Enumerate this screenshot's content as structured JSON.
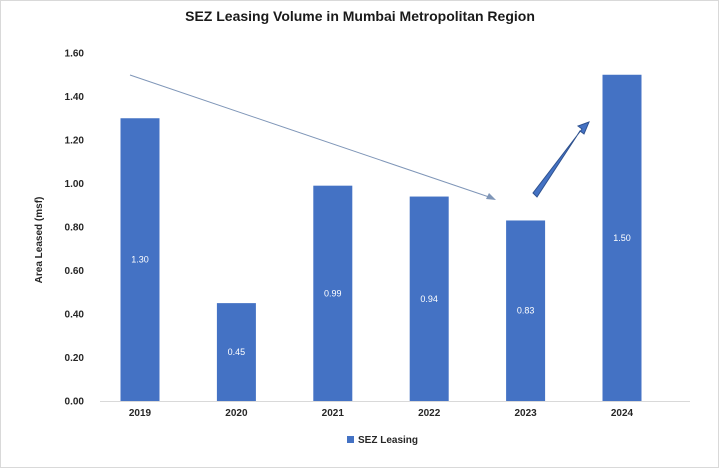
{
  "chart_data": {
    "type": "bar",
    "title": "SEZ Leasing Volume in Mumbai Metropolitan Region",
    "xlabel": "",
    "ylabel": "Area Leased (msf)",
    "categories": [
      "2019",
      "2020",
      "2021",
      "2022",
      "2023",
      "2024"
    ],
    "series": [
      {
        "name": "SEZ Leasing",
        "values": [
          1.3,
          0.45,
          0.99,
          0.94,
          0.83,
          1.5
        ],
        "color": "#4472c4"
      }
    ],
    "data_labels": [
      "1.30",
      "0.45",
      "0.99",
      "0.94",
      "0.83",
      "1.50"
    ],
    "ylim": [
      0,
      1.6
    ],
    "yticks": [
      "0.00",
      "0.20",
      "0.40",
      "0.60",
      "0.80",
      "1.00",
      "1.20",
      "1.40",
      "1.60"
    ],
    "grid": false,
    "legend_position": "bottom",
    "annotations": [
      "downward trend arrow 2019-2023",
      "upward arrow 2023-2024"
    ]
  }
}
